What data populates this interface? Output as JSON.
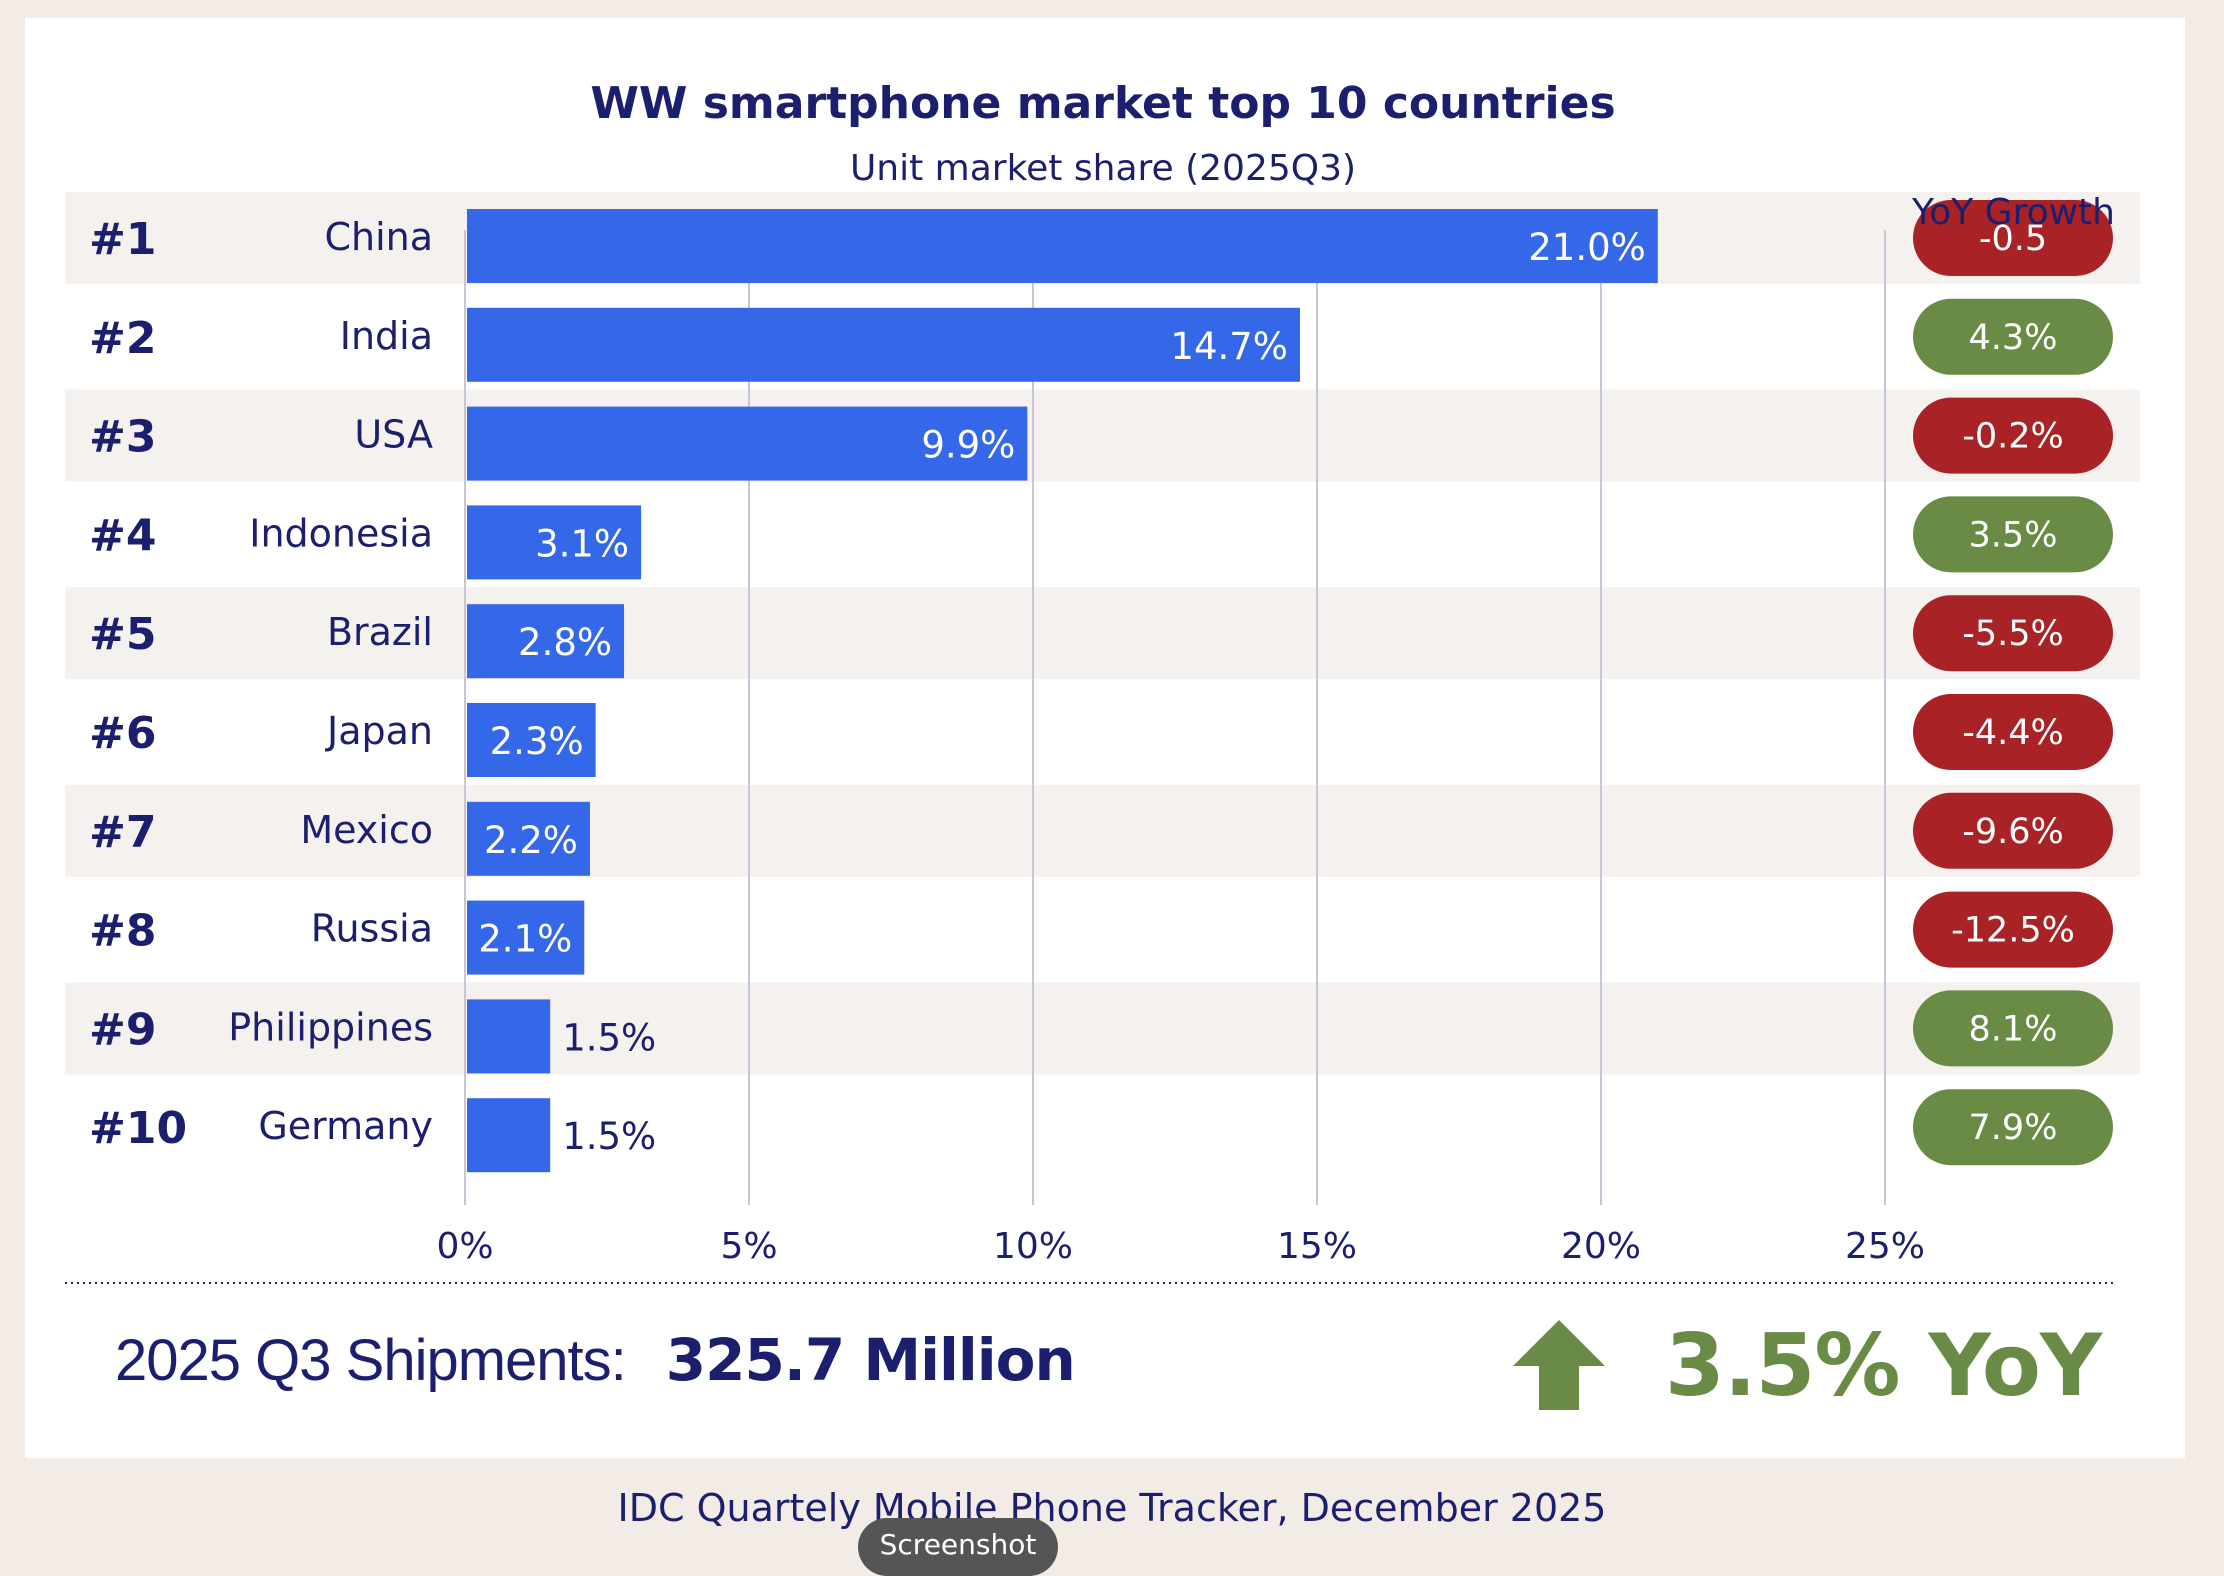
{
  "chart_data": {
    "type": "bar",
    "orientation": "horizontal",
    "title": "WW smartphone market top 10 countries",
    "subtitle": "Unit market share (2025Q3)",
    "yoy_header": "YoY Growth",
    "ranks": [
      "#1",
      "#2",
      "#3",
      "#4",
      "#5",
      "#6",
      "#7",
      "#8",
      "#9",
      "#10"
    ],
    "categories": [
      "China",
      "India",
      "USA",
      "Indonesia",
      "Brazil",
      "Japan",
      "Mexico",
      "Russia",
      "Philippines",
      "Germany"
    ],
    "values": [
      21.0,
      14.7,
      9.9,
      3.1,
      2.8,
      2.3,
      2.2,
      2.1,
      1.5,
      1.5
    ],
    "value_labels": [
      "21.0%",
      "14.7%",
      "9.9%",
      "3.1%",
      "2.8%",
      "2.3%",
      "2.2%",
      "2.1%",
      "1.5%",
      "1.5%"
    ],
    "yoy_growth": [
      -0.5,
      4.3,
      -0.2,
      3.5,
      -5.5,
      -4.4,
      -9.6,
      -12.5,
      8.1,
      7.9
    ],
    "yoy_labels": [
      "-0.5",
      "4.3%",
      "-0.2%",
      "3.5%",
      "-5.5%",
      "-4.4%",
      "-9.6%",
      "-12.5%",
      "8.1%",
      "7.9%"
    ],
    "xlim": [
      0,
      25
    ],
    "xticks": [
      0,
      5,
      10,
      15,
      20,
      25
    ],
    "xtick_labels": [
      "0%",
      "5%",
      "10%",
      "15%",
      "20%",
      "25%"
    ],
    "grid": true,
    "legend": "none"
  },
  "summary": {
    "label": "2025 Q3 Shipments:",
    "value": "325.7 Million",
    "yoy_text": "3.5% YoY",
    "trend_icon": "arrow-up-icon"
  },
  "footer": {
    "source": "IDC Quartely Mobile Phone Tracker, December 2025",
    "badge": "Screenshot"
  },
  "colors": {
    "bar": "#3468e8",
    "navy": "#1c1f6e",
    "negative": "#a82226",
    "positive": "#6a8b45",
    "stripe": "#f5f1ee",
    "grid": "#c8c6d6",
    "page_bg": "#f3ece6"
  }
}
